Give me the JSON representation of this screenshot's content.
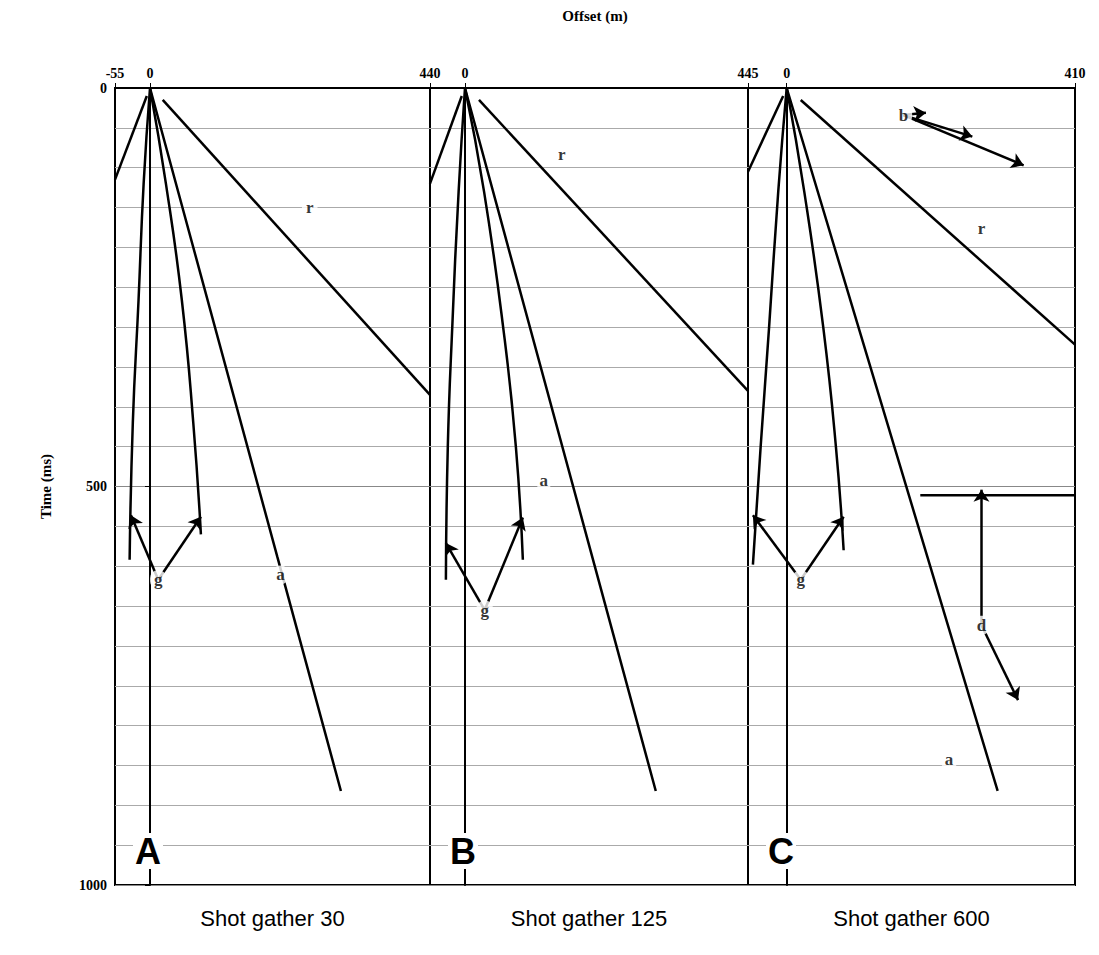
{
  "chart_data": {
    "type": "line",
    "xlabel": "Offset (m)",
    "ylabel": "Time (ms)",
    "ylim": [
      0,
      1000
    ],
    "yticks": [
      0,
      500,
      1000
    ],
    "grid": true,
    "color": "#000000",
    "panels": [
      {
        "letter": "A",
        "caption": "Shot gather 30",
        "xlim": [
          -55,
          440
        ],
        "xticks": [
          -55,
          0,
          440
        ],
        "series": [
          {
            "name": "r",
            "values": [
              [
                -5,
                10
              ],
              [
                -55,
                115
              ]
            ]
          },
          {
            "name": "r",
            "values": [
              [
                20,
                15
              ],
              [
                440,
                385
              ]
            ]
          },
          {
            "name": "g",
            "values": [
              [
                0,
                0
              ],
              [
                -10,
                120
              ],
              [
                -18,
                266
              ],
              [
                -27,
                420
              ],
              [
                -32,
                592
              ]
            ]
          },
          {
            "name": "g",
            "values": [
              [
                0,
                0
              ],
              [
                25,
                120
              ],
              [
                50,
                266
              ],
              [
                68,
                420
              ],
              [
                80,
                560
              ]
            ]
          },
          {
            "name": "a",
            "values": [
              [
                0,
                0
              ],
              [
                200,
                588
              ],
              [
                300,
                882
              ]
            ]
          }
        ],
        "annotations": [
          {
            "text": "r",
            "x": 251,
            "y": 150
          },
          {
            "text": "g",
            "x": 13,
            "y": 617,
            "arrows_to": [
              [
                -30,
                536
              ],
              [
                80,
                538
              ]
            ]
          },
          {
            "text": "a",
            "x": 205,
            "y": 611
          }
        ]
      },
      {
        "letter": "B",
        "caption": "Shot gather 125",
        "xlim": [
          -55,
          445
        ],
        "xticks": [
          0,
          445
        ],
        "tick_labels": "x",
        "series": [
          {
            "name": "r",
            "values": [
              [
                -5,
                10
              ],
              [
                -55,
                120
              ]
            ]
          },
          {
            "name": "r",
            "values": [
              [
                22,
                15
              ],
              [
                445,
                380
              ]
            ]
          },
          {
            "name": "g",
            "values": [
              [
                0,
                0
              ],
              [
                -10,
                130
              ],
              [
                -20,
                300
              ],
              [
                -27,
                450
              ],
              [
                -30,
                617
              ]
            ]
          },
          {
            "name": "g",
            "values": [
              [
                0,
                0
              ],
              [
                30,
                130
              ],
              [
                60,
                300
              ],
              [
                80,
                450
              ],
              [
                91,
                592
              ]
            ]
          },
          {
            "name": "a",
            "values": [
              [
                0,
                0
              ],
              [
                200,
                588
              ],
              [
                300,
                882
              ]
            ]
          }
        ],
        "annotations": [
          {
            "text": "r",
            "x": 152,
            "y": 84
          },
          {
            "text": "g",
            "x": 31,
            "y": 655,
            "arrows_to": [
              [
                -30,
                571
              ],
              [
                91,
                539
              ]
            ]
          },
          {
            "text": "a",
            "x": 124,
            "y": 492
          }
        ]
      },
      {
        "letter": "C",
        "caption": "Shot gather 600",
        "xlim": [
          -55,
          410
        ],
        "xticks": [
          0,
          410
        ],
        "tick_labels": "x",
        "series": [
          {
            "name": "r",
            "values": [
              [
                -5,
                10
              ],
              [
                -55,
                105
              ]
            ]
          },
          {
            "name": "r",
            "values": [
              [
                20,
                15
              ],
              [
                410,
                322
              ]
            ]
          },
          {
            "name": "g",
            "values": [
              [
                0,
                0
              ],
              [
                -12,
                130
              ],
              [
                -25,
                300
              ],
              [
                -37,
                450
              ],
              [
                -48,
                598
              ]
            ]
          },
          {
            "name": "g",
            "values": [
              [
                0,
                0
              ],
              [
                25,
                130
              ],
              [
                52,
                300
              ],
              [
                70,
                450
              ],
              [
                81,
                580
              ]
            ]
          },
          {
            "name": "a",
            "values": [
              [
                0,
                0
              ],
              [
                200,
                588
              ],
              [
                300,
                882
              ]
            ]
          },
          {
            "name": "d",
            "values": [
              [
                190,
                511
              ],
              [
                410,
                511
              ]
            ]
          }
        ],
        "annotations": [
          {
            "text": "r",
            "x": 277,
            "y": 176
          },
          {
            "text": "g",
            "x": 20,
            "y": 617,
            "arrows_to": [
              [
                -48,
                536
              ],
              [
                81,
                538
              ]
            ]
          },
          {
            "text": "b",
            "x": 166,
            "y": 34,
            "arrows_to": [
              [
                198,
                31
              ],
              [
                264,
                61
              ],
              [
                337,
                97
              ]
            ]
          },
          {
            "text": "d",
            "x": 277,
            "y": 674,
            "arrows_to": [
              [
                277,
                504
              ],
              [
                329,
                768
              ]
            ]
          },
          {
            "text": "a",
            "x": 231,
            "y": 843
          }
        ]
      }
    ]
  }
}
